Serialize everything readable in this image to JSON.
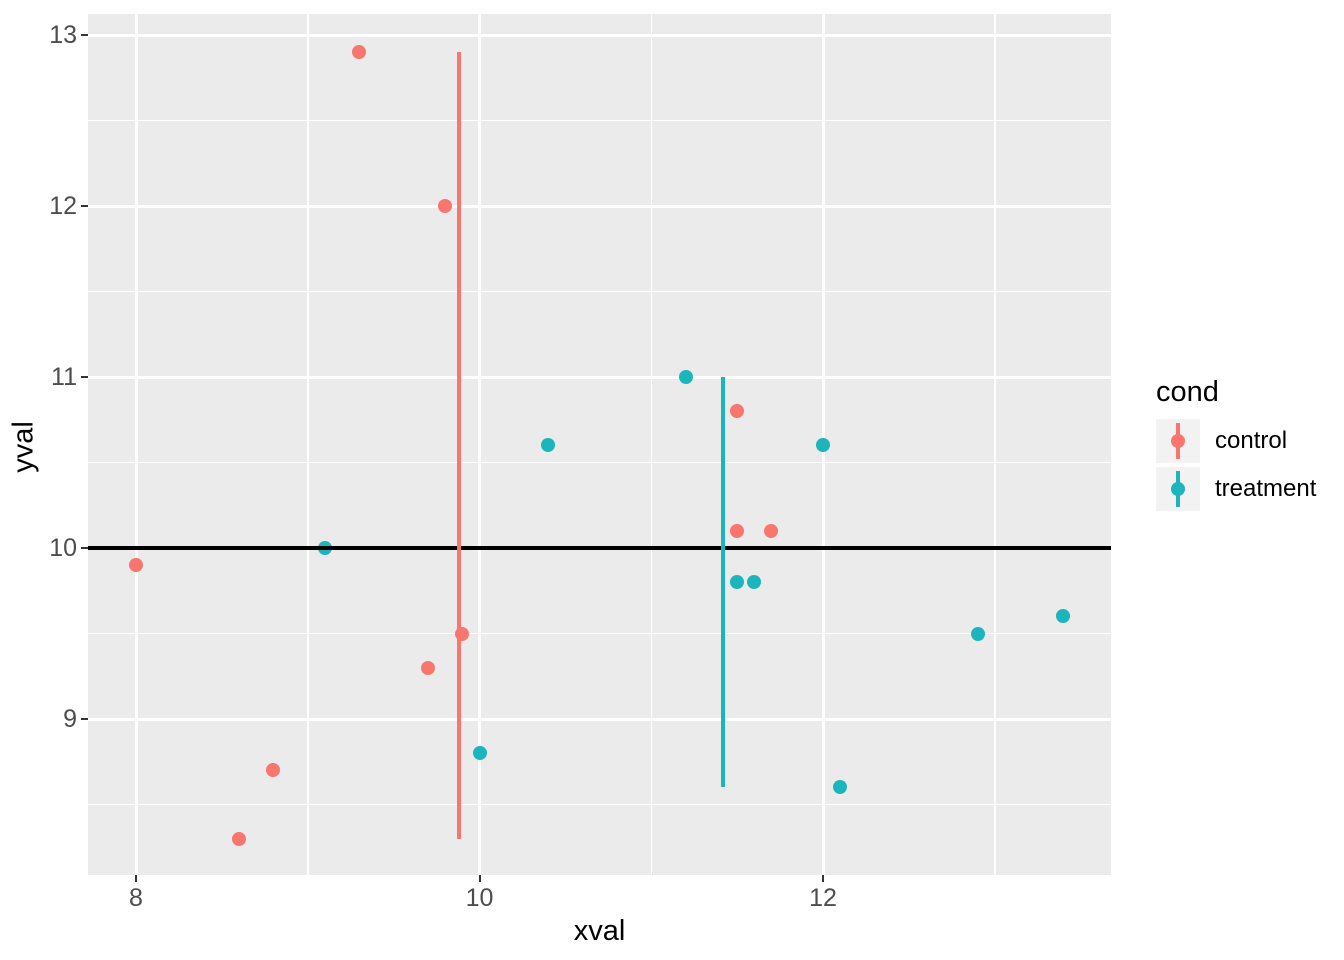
{
  "chart_data": {
    "type": "scatter",
    "title": "",
    "xlabel": "xval",
    "ylabel": "yval",
    "axes": {
      "x_ticks": [
        8,
        10,
        12
      ],
      "x_minor": [
        9,
        11,
        13
      ],
      "y_ticks": [
        9,
        10,
        11,
        12,
        13
      ],
      "y_minor": [
        8.5,
        9.5,
        10.5,
        11.5,
        12.5
      ],
      "xlim": [
        7.72,
        13.68
      ],
      "ylim": [
        8.08,
        13.12
      ],
      "grid": "on",
      "panel_bg": "#EBEBEB",
      "grid_color": "#FFFFFF",
      "tick_color": "#333333",
      "tick_label_color": "#4D4D4D"
    },
    "series": [
      {
        "name": "control",
        "color": "#F8766D",
        "points": [
          [
            11.5,
            10.8
          ],
          [
            9.3,
            12.9
          ],
          [
            8.0,
            9.9
          ],
          [
            11.5,
            10.1
          ],
          [
            8.6,
            8.3
          ],
          [
            9.9,
            9.5
          ],
          [
            8.8,
            8.7
          ],
          [
            11.7,
            10.1
          ],
          [
            9.7,
            9.3
          ],
          [
            9.8,
            12.0
          ]
        ]
      },
      {
        "name": "treatment",
        "color": "#1BB5BB",
        "points": [
          [
            10.4,
            10.6
          ],
          [
            12.1,
            8.6
          ],
          [
            11.2,
            11.0
          ],
          [
            10.0,
            8.8
          ],
          [
            12.9,
            9.5
          ],
          [
            9.1,
            10.0
          ],
          [
            13.4,
            9.6
          ],
          [
            11.6,
            9.8
          ],
          [
            11.5,
            9.8
          ],
          [
            12.0,
            10.6
          ]
        ]
      }
    ],
    "hline": {
      "y": 10,
      "color": "#000000"
    },
    "vlines": [
      {
        "series": "control",
        "x": 9.88,
        "ymin": 8.3,
        "ymax": 12.9,
        "color": "#F8766D"
      },
      {
        "series": "treatment",
        "x": 11.42,
        "ymin": 8.6,
        "ymax": 11.0,
        "color": "#1BB5BB"
      }
    ],
    "legend": {
      "title": "cond",
      "position": "right",
      "entries": [
        {
          "label": "control",
          "color": "#F8766D"
        },
        {
          "label": "treatment",
          "color": "#1BB5BB"
        }
      ]
    }
  }
}
